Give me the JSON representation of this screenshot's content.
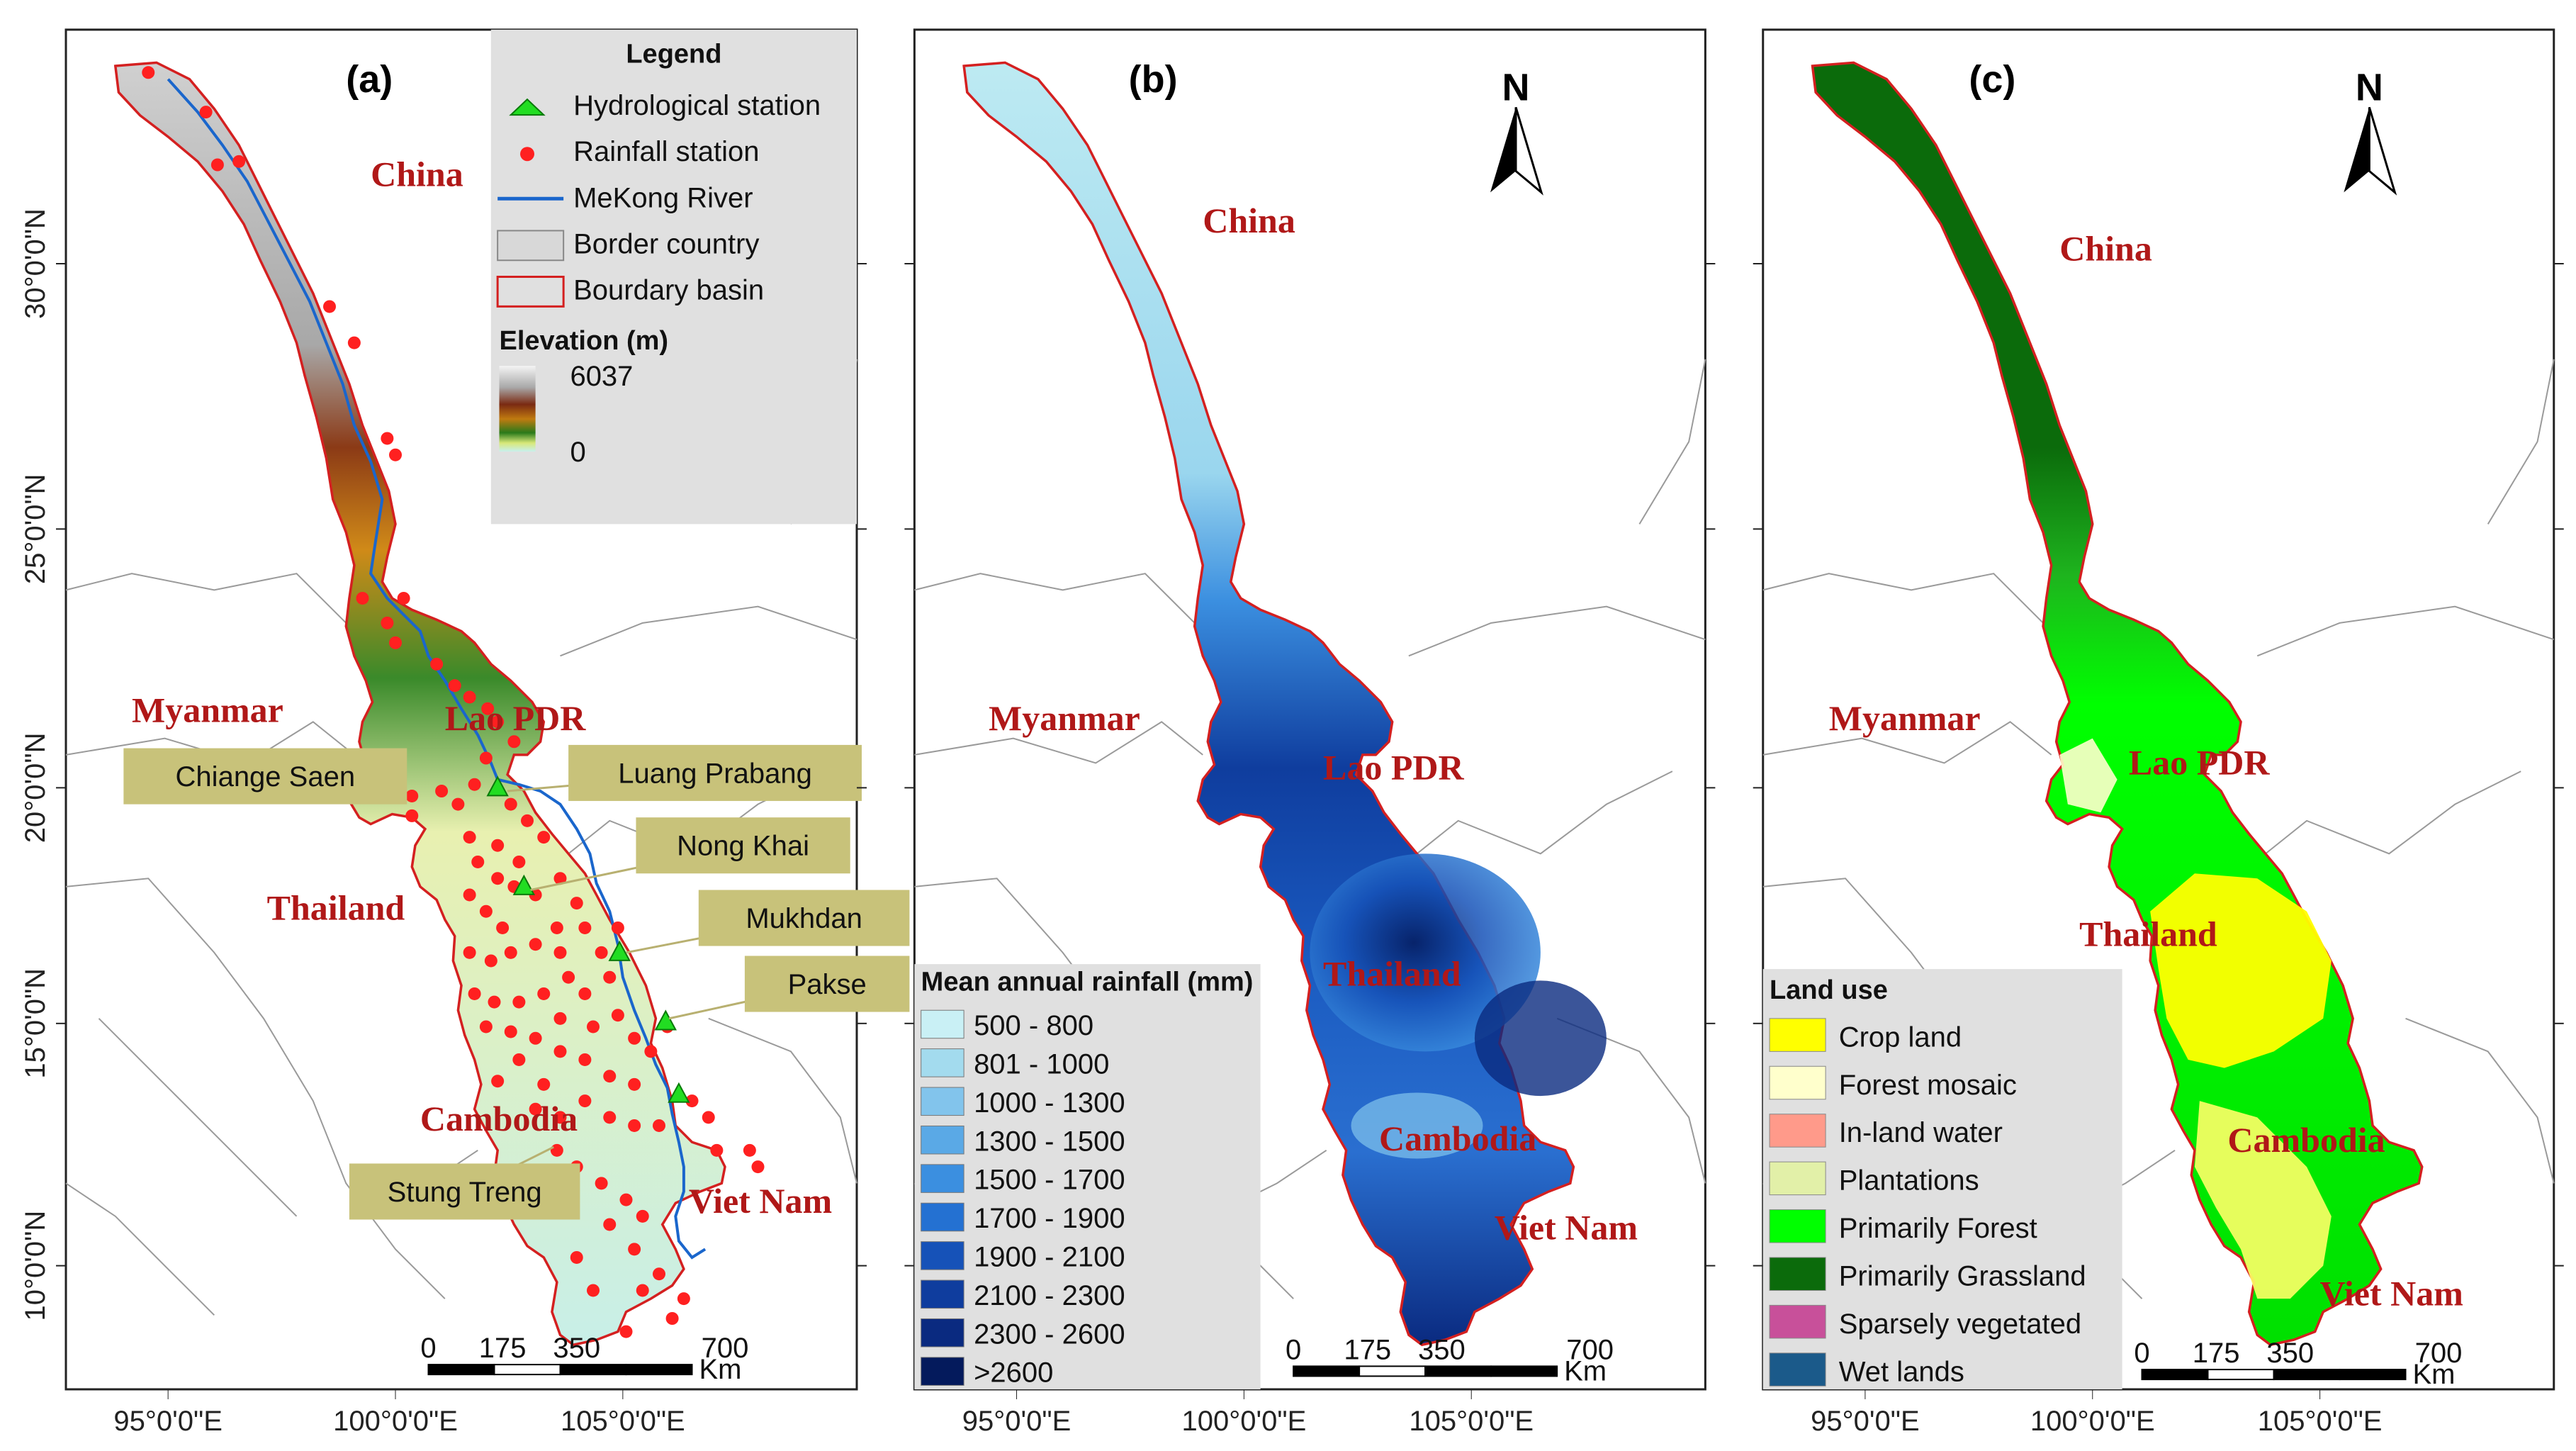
{
  "panels": [
    {
      "tag": "(a)",
      "north": "N",
      "countries": [
        "China",
        "Myanmar",
        "Lao PDR",
        "Thailand",
        "Cambodia",
        "Viet Nam"
      ],
      "legend": {
        "title": "Legend",
        "items": [
          "Hydrological station",
          "Rainfall station",
          "MeKong River",
          "Border country",
          "Bourdary basin"
        ],
        "elevation_title": "Elevation (m)",
        "elevation_max": "6037",
        "elevation_min": "0"
      },
      "stations": [
        "Chiange Saen",
        "Luang Prabang",
        "Nong Khai",
        "Mukhdan",
        "Pakse",
        "Stung Treng"
      ],
      "scale": {
        "ticks": [
          "0",
          "175",
          "350",
          "700"
        ],
        "unit": "Km"
      }
    },
    {
      "tag": "(b)",
      "north": "N",
      "countries": [
        "China",
        "Myanmar",
        "Lao PDR",
        "Thailand",
        "Cambodia",
        "Viet Nam"
      ],
      "legend": {
        "title": "Mean annual rainfall (mm)",
        "classes": [
          {
            "label": "500 - 800",
            "color": "#c9f0f5"
          },
          {
            "label": "801 - 1000",
            "color": "#a3dbee"
          },
          {
            "label": "1000 - 1300",
            "color": "#82c4ec"
          },
          {
            "label": "1300 - 1500",
            "color": "#5aa9e6"
          },
          {
            "label": "1500 - 1700",
            "color": "#3b8fe0"
          },
          {
            "label": "1700 - 1900",
            "color": "#2471d2"
          },
          {
            "label": "1900 - 2100",
            "color": "#1652b8"
          },
          {
            "label": "2100 - 2300",
            "color": "#0f3d9e"
          },
          {
            "label": "2300 - 2600",
            "color": "#0a2a80"
          },
          {
            "label": ">2600",
            "color": "#041a5c"
          }
        ]
      },
      "scale": {
        "ticks": [
          "0",
          "175",
          "350",
          "700"
        ],
        "unit": "Km"
      }
    },
    {
      "tag": "(c)",
      "north": "N",
      "countries": [
        "China",
        "Myanmar",
        "Lao PDR",
        "Thailand",
        "Cambodia",
        "Viet Nam"
      ],
      "legend": {
        "title": "Land use",
        "classes": [
          {
            "label": "Crop land",
            "color": "#ffff00"
          },
          {
            "label": "Forest mosaic",
            "color": "#ffffcc"
          },
          {
            "label": "In-land water",
            "color": "#ff9a8a"
          },
          {
            "label": "Plantations",
            "color": "#e2f0a8"
          },
          {
            "label": "Primarily Forest",
            "color": "#00ff00"
          },
          {
            "label": "Primarily Grassland",
            "color": "#0b6b0b"
          },
          {
            "label": "Sparsely vegetated",
            "color": "#c8509a"
          },
          {
            "label": "Wet lands",
            "color": "#1b5a8a"
          }
        ]
      },
      "scale": {
        "ticks": [
          "0",
          "175",
          "350",
          "700"
        ],
        "unit": "Km"
      }
    }
  ],
  "axes": {
    "lat_labels": [
      "30°0'0\"N",
      "25°0'0\"N",
      "20°0'0\"N",
      "15°0'0\"N",
      "10°0'0\"N"
    ],
    "lon_labels": [
      "95°0'0\"E",
      "100°0'0\"E",
      "105°0'0\"E"
    ]
  },
  "colors": {
    "country_label": "#b01818",
    "basin_border": "#d42020",
    "river": "#1a66cc",
    "rain_station": "#ff2020",
    "hydro_station": "#22dd22",
    "station_box": "#c8c27a",
    "legend_bg": "#e0e0e0"
  }
}
